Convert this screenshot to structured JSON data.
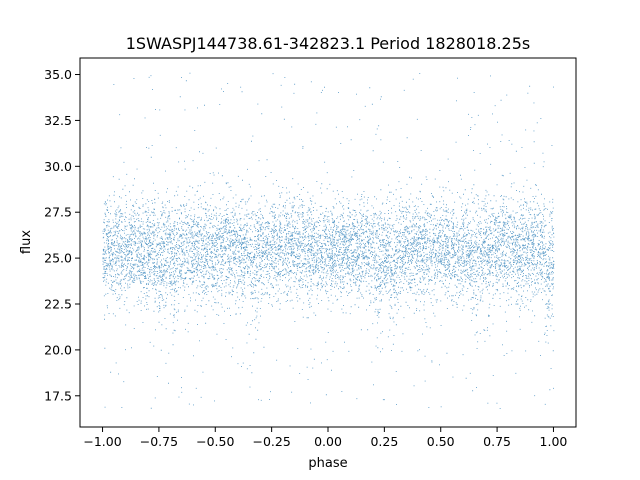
{
  "chart_data": {
    "type": "scatter",
    "title": "1SWASPJ144738.61-342823.1 Period 1828018.25s",
    "xlabel": "phase",
    "ylabel": "flux",
    "xlim": [
      -1.1,
      1.1
    ],
    "ylim": [
      15.8,
      35.9
    ],
    "x_ticks": [
      -1.0,
      -0.75,
      -0.5,
      -0.25,
      0.0,
      0.25,
      0.5,
      0.75,
      1.0
    ],
    "x_tick_labels": [
      "−1.00",
      "−0.75",
      "−0.50",
      "−0.25",
      "0.00",
      "0.25",
      "0.50",
      "0.75",
      "1.00"
    ],
    "y_ticks": [
      17.5,
      20.0,
      22.5,
      25.0,
      27.5,
      30.0,
      32.5,
      35.0
    ],
    "y_tick_labels": [
      "17.5",
      "20.0",
      "22.5",
      "25.0",
      "27.5",
      "30.0",
      "32.5",
      "35.0"
    ],
    "grid": false,
    "series": [
      {
        "color": "#1f77b4",
        "description_of_distribution": "dense folded light curve",
        "phase_range": [
          -1.0,
          1.0
        ],
        "central_flux": 25.5,
        "core_flux_range": [
          22.5,
          28.5
        ],
        "outlier_flux_range": [
          16.8,
          35.2
        ],
        "dips_at_phase": [
          -0.75,
          -0.68,
          -0.33,
          0.22,
          0.29,
          0.66,
          0.98
        ],
        "point_count": 9000
      }
    ]
  },
  "colors": {
    "marker": "#1f77b4",
    "axes": "#000000",
    "background": "#ffffff"
  }
}
